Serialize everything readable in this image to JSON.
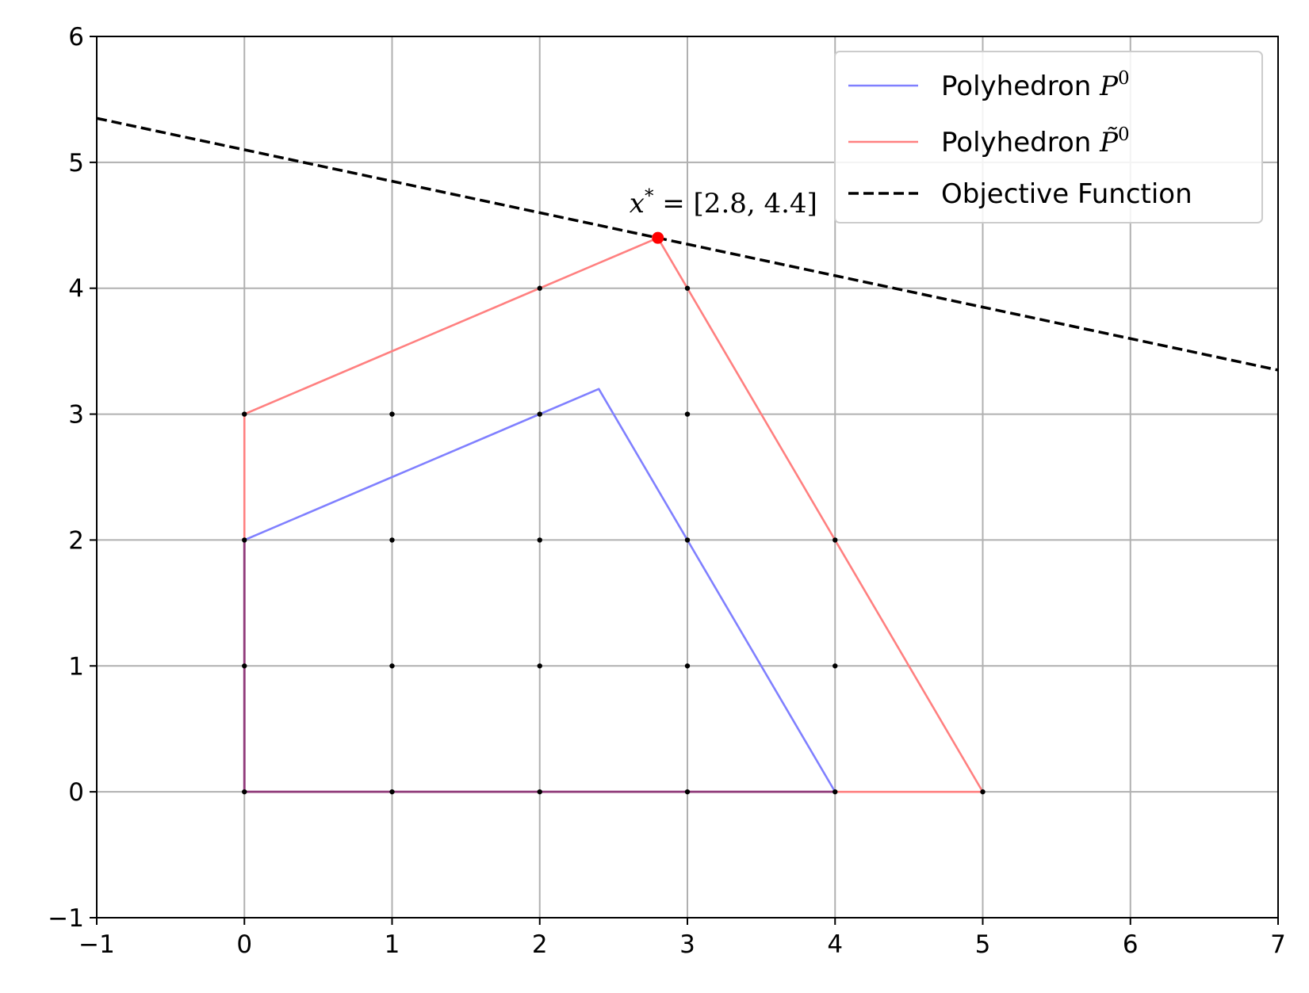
{
  "chart_data": {
    "type": "line",
    "xlim": [
      -1,
      7
    ],
    "ylim": [
      -1,
      6
    ],
    "x_ticks": [
      -1,
      0,
      1,
      2,
      3,
      4,
      5,
      6,
      7
    ],
    "y_ticks": [
      -1,
      0,
      1,
      2,
      3,
      4,
      5,
      6
    ],
    "x_tick_labels": [
      "−1",
      "0",
      "1",
      "2",
      "3",
      "4",
      "5",
      "6",
      "7"
    ],
    "y_tick_labels": [
      "−1",
      "0",
      "1",
      "2",
      "3",
      "4",
      "5",
      "6"
    ],
    "grid": true,
    "legend_position": "top-right",
    "series": [
      {
        "name": "Polyhedron P0",
        "legend_prefix": "Polyhedron",
        "legend_math": "P",
        "legend_sup": "0",
        "style": "solid",
        "color": "#8080ff",
        "points": [
          [
            0,
            0
          ],
          [
            0,
            2
          ],
          [
            2.4,
            3.2
          ],
          [
            4,
            0
          ],
          [
            0,
            0
          ]
        ]
      },
      {
        "name": "Polyhedron P~0",
        "legend_prefix": "Polyhedron",
        "legend_math": "P̃",
        "legend_sup": "0",
        "style": "solid",
        "color": "#ff8080",
        "points": [
          [
            0,
            0
          ],
          [
            0,
            3
          ],
          [
            2.8,
            4.4
          ],
          [
            5,
            0
          ],
          [
            0,
            0
          ]
        ]
      },
      {
        "name": "Objective Function",
        "legend_label": "Objective Function",
        "style": "dashed",
        "color": "#000000",
        "points": [
          [
            -1,
            5.35
          ],
          [
            7,
            3.35
          ]
        ]
      }
    ],
    "overlap_segments": {
      "color": "#903b7a",
      "points": [
        [
          0,
          2
        ],
        [
          0,
          0
        ],
        [
          4,
          0
        ]
      ]
    },
    "integer_points": [
      [
        0,
        0
      ],
      [
        1,
        0
      ],
      [
        2,
        0
      ],
      [
        3,
        0
      ],
      [
        4,
        0
      ],
      [
        5,
        0
      ],
      [
        0,
        1
      ],
      [
        1,
        1
      ],
      [
        2,
        1
      ],
      [
        3,
        1
      ],
      [
        4,
        1
      ],
      [
        0,
        2
      ],
      [
        1,
        2
      ],
      [
        2,
        2
      ],
      [
        3,
        2
      ],
      [
        4,
        2
      ],
      [
        0,
        3
      ],
      [
        1,
        3
      ],
      [
        2,
        3
      ],
      [
        3,
        3
      ],
      [
        2,
        4
      ],
      [
        3,
        4
      ]
    ],
    "optimum": {
      "point": [
        2.8,
        4.4
      ],
      "color": "#ff0000",
      "label_var": "x",
      "label_sup": "*",
      "label_value": " = [2.8, 4.4]"
    }
  }
}
